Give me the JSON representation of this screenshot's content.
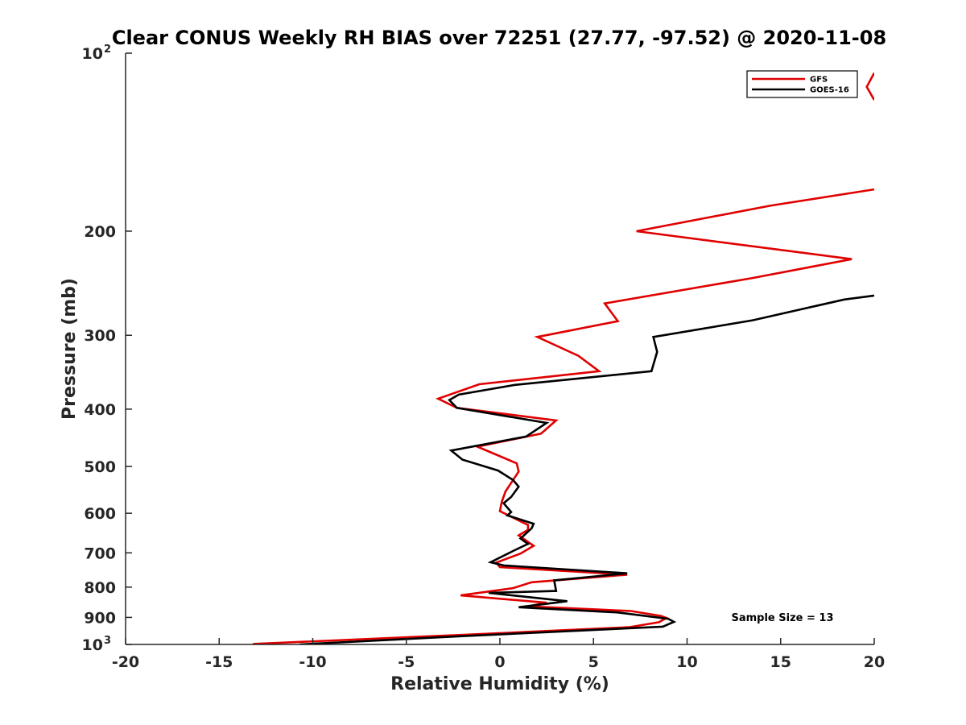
{
  "chart_data": {
    "type": "line",
    "title": "Clear CONUS Weekly RH BIAS over 72251 (27.77, -97.52) @ 2020-11-08",
    "xlabel": "Relative Humidity (%)",
    "ylabel": "Pressure (mb)",
    "xlim": [
      -20,
      20
    ],
    "ylim": [
      100,
      1000
    ],
    "y_scale": "log",
    "y_reversed": true,
    "grid": false,
    "legend_position": "top-right",
    "x_ticks": [
      "-20",
      "-15",
      "-10",
      "-5",
      "0",
      "5",
      "10",
      "15",
      "20"
    ],
    "y_ticks": [
      {
        "value": 100,
        "base": "10",
        "exp": "2"
      },
      {
        "value": 200,
        "label": "200"
      },
      {
        "value": 300,
        "label": "300"
      },
      {
        "value": 400,
        "label": "400"
      },
      {
        "value": 500,
        "label": "500"
      },
      {
        "value": 600,
        "label": "600"
      },
      {
        "value": 700,
        "label": "700"
      },
      {
        "value": 800,
        "label": "800"
      },
      {
        "value": 900,
        "label": "900"
      },
      {
        "value": 1000,
        "base": "10",
        "exp": "3"
      }
    ],
    "annotation": "Sample Size = 13",
    "series": [
      {
        "name": "GFS",
        "color": "#e00000",
        "points": [
          [
            20.0,
            108
          ],
          [
            19.6,
            114
          ],
          [
            20.0,
            120
          ],
          null,
          [
            20.0,
            170
          ],
          [
            14.5,
            181
          ],
          [
            7.3,
            200
          ],
          [
            18.8,
            223
          ],
          [
            13.5,
            240
          ],
          [
            5.6,
            265
          ],
          [
            6.3,
            284
          ],
          [
            2.0,
            302
          ],
          [
            4.2,
            325
          ],
          [
            5.3,
            345
          ],
          [
            -1.1,
            363
          ],
          [
            -3.3,
            384
          ],
          [
            -2.3,
            398
          ],
          [
            3.0,
            418
          ],
          [
            2.2,
            440
          ],
          [
            -1.2,
            463
          ],
          [
            0.9,
            494
          ],
          [
            1.0,
            510
          ],
          [
            0.3,
            551
          ],
          [
            0.1,
            574
          ],
          [
            0.0,
            595
          ],
          [
            1.5,
            628
          ],
          [
            1.5,
            640
          ],
          [
            1.0,
            654
          ],
          [
            1.8,
            681
          ],
          [
            1.1,
            702
          ],
          [
            -0.2,
            727
          ],
          [
            0.0,
            740
          ],
          [
            6.8,
            762
          ],
          [
            1.7,
            785
          ],
          [
            0.7,
            803
          ],
          [
            -2.1,
            826
          ],
          [
            2.5,
            850
          ],
          [
            1.5,
            862
          ],
          [
            7.0,
            878
          ],
          [
            8.6,
            895
          ],
          [
            8.9,
            902
          ],
          [
            8.5,
            917
          ],
          [
            6.9,
            935
          ],
          [
            -2.2,
            964
          ],
          [
            -13.2,
            998
          ]
        ]
      },
      {
        "name": "GOES-16",
        "color": "#000000",
        "points": [
          [
            20.0,
            257
          ],
          [
            18.4,
            261
          ],
          [
            13.5,
            283
          ],
          [
            8.2,
            302
          ],
          [
            8.4,
            320
          ],
          [
            8.1,
            345
          ],
          [
            0.8,
            364
          ],
          [
            -2.2,
            378
          ],
          [
            -2.7,
            386
          ],
          [
            -2.3,
            398
          ],
          [
            2.5,
            422
          ],
          [
            1.4,
            445
          ],
          [
            -2.6,
            470
          ],
          [
            -2.0,
            487
          ],
          [
            -0.1,
            508
          ],
          [
            0.7,
            527
          ],
          [
            1.0,
            541
          ],
          [
            0.6,
            563
          ],
          [
            0.2,
            577
          ],
          [
            0.6,
            597
          ],
          [
            0.4,
            605
          ],
          [
            1.8,
            625
          ],
          [
            1.7,
            636
          ],
          [
            1.1,
            662
          ],
          [
            1.5,
            676
          ],
          [
            0.7,
            695
          ],
          [
            -0.5,
            726
          ],
          [
            0.2,
            735
          ],
          [
            6.8,
            758
          ],
          [
            2.9,
            779
          ],
          [
            3.0,
            812
          ],
          [
            -0.6,
            818
          ],
          [
            3.6,
            845
          ],
          [
            1.0,
            865
          ],
          [
            6.3,
            883
          ],
          [
            9.0,
            905
          ],
          [
            9.3,
            916
          ],
          [
            8.7,
            933
          ],
          [
            -1.9,
            968
          ],
          [
            -10.7,
            1000
          ]
        ]
      }
    ]
  }
}
